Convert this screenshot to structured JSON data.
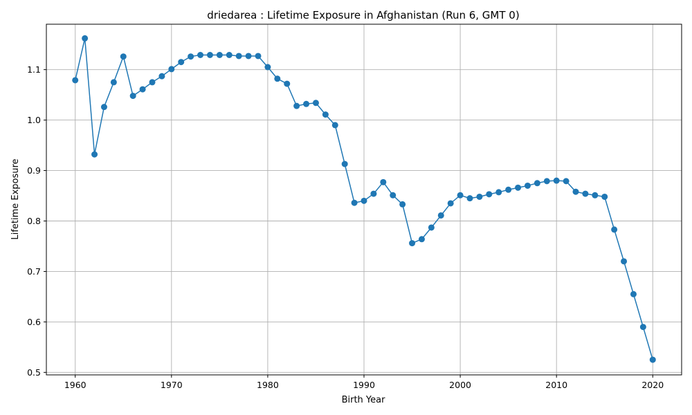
{
  "chart_data": {
    "type": "line",
    "title": "driedarea : Lifetime Exposure in Afghanistan (Run 6, GMT 0)",
    "xlabel": "Birth Year",
    "ylabel": "Lifetime Exposure",
    "xlim": [
      1957,
      2023
    ],
    "ylim": [
      0.495,
      1.19
    ],
    "xticks": [
      1960,
      1970,
      1980,
      1990,
      2000,
      2010,
      2020
    ],
    "yticks": [
      0.5,
      0.6,
      0.7,
      0.8,
      0.9,
      1.0,
      1.1
    ],
    "ytick_labels": [
      "0.5",
      "0.6",
      "0.7",
      "0.8",
      "0.9",
      "1.0",
      "1.1"
    ],
    "grid": true,
    "color": "#1f77b4",
    "marker": "circle",
    "x": [
      1960,
      1961,
      1962,
      1963,
      1964,
      1965,
      1966,
      1967,
      1968,
      1969,
      1970,
      1971,
      1972,
      1973,
      1974,
      1975,
      1976,
      1977,
      1978,
      1979,
      1980,
      1981,
      1982,
      1983,
      1984,
      1985,
      1986,
      1987,
      1988,
      1989,
      1990,
      1991,
      1992,
      1993,
      1994,
      1995,
      1996,
      1997,
      1998,
      1999,
      2000,
      2001,
      2002,
      2003,
      2004,
      2005,
      2006,
      2007,
      2008,
      2009,
      2010,
      2011,
      2012,
      2013,
      2014,
      2015,
      2016,
      2017,
      2018,
      2019,
      2020
    ],
    "y": [
      1.079,
      1.162,
      0.932,
      1.026,
      1.075,
      1.126,
      1.048,
      1.061,
      1.075,
      1.087,
      1.101,
      1.115,
      1.126,
      1.129,
      1.129,
      1.129,
      1.129,
      1.127,
      1.127,
      1.127,
      1.105,
      1.082,
      1.072,
      1.028,
      1.032,
      1.034,
      1.011,
      0.99,
      0.913,
      0.836,
      0.84,
      0.854,
      0.877,
      0.851,
      0.833,
      0.756,
      0.764,
      0.787,
      0.811,
      0.835,
      0.851,
      0.845,
      0.848,
      0.853,
      0.857,
      0.862,
      0.866,
      0.87,
      0.875,
      0.879,
      0.88,
      0.879,
      0.858,
      0.854,
      0.851,
      0.848,
      0.783,
      0.72,
      0.655,
      0.59,
      0.525
    ]
  }
}
